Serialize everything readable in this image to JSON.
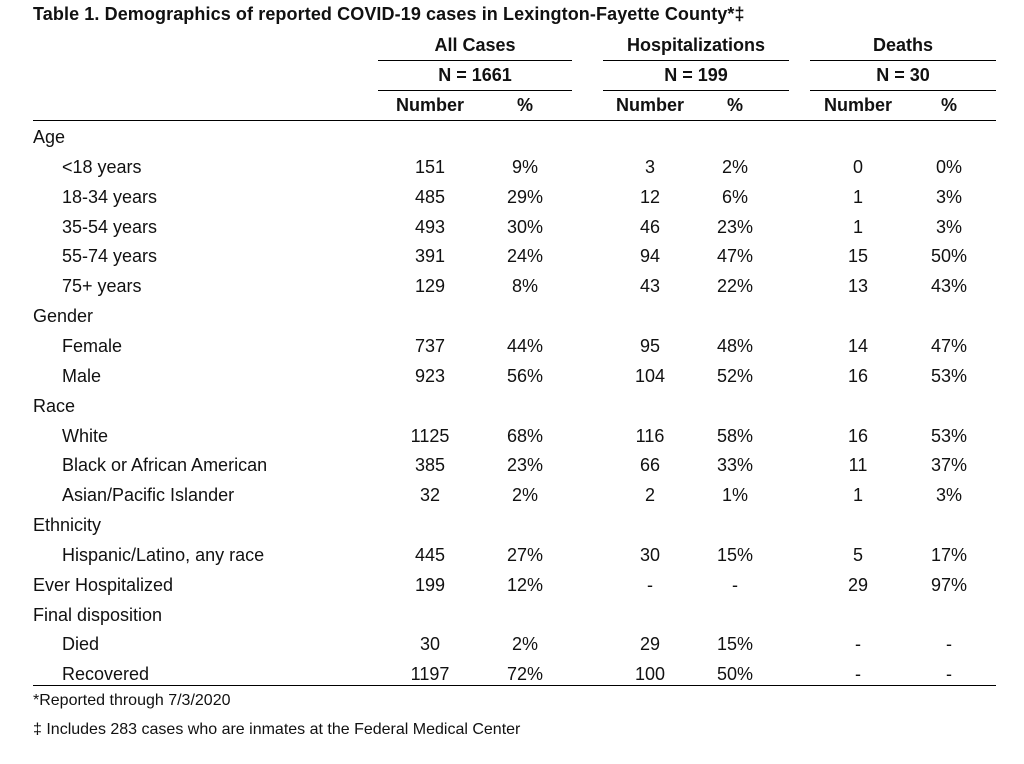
{
  "title": "Table 1. Demographics of reported COVID-19 cases in Lexington-Fayette County*‡",
  "groups": [
    {
      "name": "All Cases",
      "n": "N = 1661"
    },
    {
      "name": "Hospitalizations",
      "n": "N = 199"
    },
    {
      "name": "Deaths",
      "n": "N = 30"
    }
  ],
  "subheaders": {
    "number": "Number",
    "percent": "%"
  },
  "rows": [
    {
      "label": "Age",
      "indent": false,
      "values": [
        "",
        "",
        "",
        "",
        "",
        ""
      ]
    },
    {
      "label": "<18 years",
      "indent": true,
      "values": [
        "151",
        "9%",
        "3",
        "2%",
        "0",
        "0%"
      ]
    },
    {
      "label": "18-34 years",
      "indent": true,
      "values": [
        "485",
        "29%",
        "12",
        "6%",
        "1",
        "3%"
      ]
    },
    {
      "label": "35-54 years",
      "indent": true,
      "values": [
        "493",
        "30%",
        "46",
        "23%",
        "1",
        "3%"
      ]
    },
    {
      "label": "55-74 years",
      "indent": true,
      "values": [
        "391",
        "24%",
        "94",
        "47%",
        "15",
        "50%"
      ]
    },
    {
      "label": "75+ years",
      "indent": true,
      "values": [
        "129",
        "8%",
        "43",
        "22%",
        "13",
        "43%"
      ]
    },
    {
      "label": "Gender",
      "indent": false,
      "values": [
        "",
        "",
        "",
        "",
        "",
        ""
      ]
    },
    {
      "label": "Female",
      "indent": true,
      "values": [
        "737",
        "44%",
        "95",
        "48%",
        "14",
        "47%"
      ]
    },
    {
      "label": "Male",
      "indent": true,
      "values": [
        "923",
        "56%",
        "104",
        "52%",
        "16",
        "53%"
      ]
    },
    {
      "label": "Race",
      "indent": false,
      "values": [
        "",
        "",
        "",
        "",
        "",
        ""
      ]
    },
    {
      "label": "White",
      "indent": true,
      "values": [
        "1125",
        "68%",
        "116",
        "58%",
        "16",
        "53%"
      ]
    },
    {
      "label": "Black or African American",
      "indent": true,
      "values": [
        "385",
        "23%",
        "66",
        "33%",
        "11",
        "37%"
      ]
    },
    {
      "label": "Asian/Pacific Islander",
      "indent": true,
      "values": [
        "32",
        "2%",
        "2",
        "1%",
        "1",
        "3%"
      ]
    },
    {
      "label": "Ethnicity",
      "indent": false,
      "values": [
        "",
        "",
        "",
        "",
        "",
        ""
      ]
    },
    {
      "label": "Hispanic/Latino, any race",
      "indent": true,
      "values": [
        "445",
        "27%",
        "30",
        "15%",
        "5",
        "17%"
      ]
    },
    {
      "label": "Ever Hospitalized",
      "indent": false,
      "values": [
        "199",
        "12%",
        "-",
        "-",
        "29",
        "97%"
      ]
    },
    {
      "label": "Final disposition",
      "indent": false,
      "values": [
        "",
        "",
        "",
        "",
        "",
        ""
      ]
    },
    {
      "label": "Died",
      "indent": true,
      "values": [
        "30",
        "2%",
        "29",
        "15%",
        "-",
        "-"
      ]
    },
    {
      "label": "Recovered",
      "indent": true,
      "values": [
        "1197",
        "72%",
        "100",
        "50%",
        "-",
        "-"
      ]
    }
  ],
  "footnotes": [
    "*Reported through 7/3/2020",
    "‡ Includes 283 cases who are inmates at the Federal Medical Center"
  ]
}
